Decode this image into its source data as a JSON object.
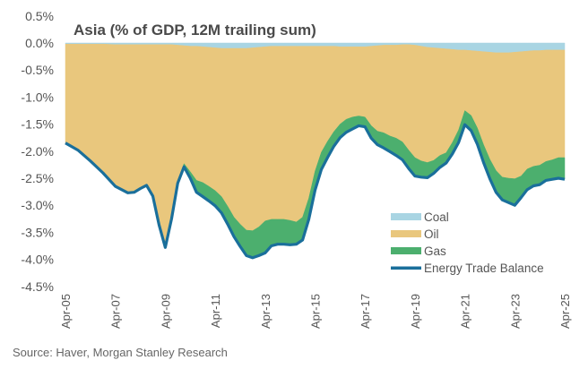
{
  "chart_data": {
    "type": "area",
    "title": "Asia (% of GDP, 12M trailing sum)",
    "xlabel": "",
    "ylabel": "",
    "ylim": [
      -4.5,
      0.5
    ],
    "yticks": [
      "0.5%",
      "0.0%",
      "-0.5%",
      "-1.0%",
      "-1.5%",
      "-2.0%",
      "-2.5%",
      "-3.0%",
      "-3.5%",
      "-4.0%",
      "-4.5%"
    ],
    "ytick_values": [
      0.5,
      0.0,
      -0.5,
      -1.0,
      -1.5,
      -2.0,
      -2.5,
      -3.0,
      -3.5,
      -4.0,
      -4.5
    ],
    "xticks": [
      "Apr-05",
      "Apr-07",
      "Apr-09",
      "Apr-11",
      "Apr-13",
      "Apr-15",
      "Apr-17",
      "Apr-19",
      "Apr-21",
      "Apr-23",
      "Apr-25"
    ],
    "xtick_values": [
      2005.25,
      2007.25,
      2009.25,
      2011.25,
      2013.25,
      2015.25,
      2017.25,
      2019.25,
      2021.25,
      2023.25,
      2025.25
    ],
    "xlim": [
      2005.25,
      2025.25
    ],
    "grid": false,
    "legend_position": "bottom-right",
    "x": [
      2005.25,
      2005.75,
      2006.25,
      2006.75,
      2007.25,
      2007.75,
      2008.0,
      2008.25,
      2008.5,
      2008.75,
      2009.0,
      2009.25,
      2009.5,
      2009.75,
      2010.0,
      2010.25,
      2010.5,
      2010.75,
      2011.0,
      2011.25,
      2011.5,
      2011.75,
      2012.0,
      2012.25,
      2012.5,
      2012.75,
      2013.0,
      2013.25,
      2013.5,
      2013.75,
      2014.0,
      2014.25,
      2014.5,
      2014.75,
      2015.0,
      2015.25,
      2015.5,
      2015.75,
      2016.0,
      2016.25,
      2016.5,
      2016.75,
      2017.0,
      2017.25,
      2017.5,
      2017.75,
      2018.0,
      2018.25,
      2018.5,
      2018.75,
      2019.0,
      2019.25,
      2019.5,
      2019.75,
      2020.0,
      2020.25,
      2020.5,
      2020.75,
      2021.0,
      2021.25,
      2021.5,
      2021.75,
      2022.0,
      2022.25,
      2022.5,
      2022.75,
      2023.0,
      2023.25,
      2023.5,
      2023.75,
      2024.0,
      2024.25,
      2024.5,
      2024.75,
      2025.0,
      2025.25
    ],
    "series": [
      {
        "name": "Coal",
        "kind": "area",
        "color": "#a9d5e3",
        "values": [
          -0.02,
          -0.02,
          -0.02,
          -0.02,
          -0.03,
          -0.03,
          -0.03,
          -0.03,
          -0.03,
          -0.03,
          -0.03,
          -0.03,
          -0.03,
          -0.04,
          -0.05,
          -0.06,
          -0.06,
          -0.07,
          -0.08,
          -0.09,
          -0.1,
          -0.1,
          -0.1,
          -0.1,
          -0.1,
          -0.09,
          -0.08,
          -0.07,
          -0.06,
          -0.06,
          -0.06,
          -0.06,
          -0.06,
          -0.06,
          -0.06,
          -0.06,
          -0.06,
          -0.06,
          -0.06,
          -0.07,
          -0.07,
          -0.07,
          -0.07,
          -0.07,
          -0.06,
          -0.05,
          -0.04,
          -0.04,
          -0.04,
          -0.03,
          -0.03,
          -0.04,
          -0.06,
          -0.08,
          -0.09,
          -0.1,
          -0.11,
          -0.12,
          -0.13,
          -0.13,
          -0.14,
          -0.15,
          -0.16,
          -0.17,
          -0.18,
          -0.18,
          -0.18,
          -0.17,
          -0.16,
          -0.15,
          -0.14,
          -0.14,
          -0.13,
          -0.13,
          -0.13,
          -0.13
        ]
      },
      {
        "name": "Oil",
        "kind": "area",
        "color": "#e9c77d",
        "values": [
          -1.83,
          -1.96,
          -2.16,
          -2.38,
          -2.62,
          -2.74,
          -2.73,
          -2.66,
          -2.59,
          -2.79,
          -3.32,
          -3.74,
          -3.2,
          -2.5,
          -2.18,
          -2.32,
          -2.48,
          -2.51,
          -2.57,
          -2.64,
          -2.74,
          -2.92,
          -3.12,
          -3.25,
          -3.36,
          -3.38,
          -3.32,
          -3.22,
          -3.2,
          -3.2,
          -3.2,
          -3.22,
          -3.25,
          -3.16,
          -2.81,
          -2.31,
          -1.96,
          -1.76,
          -1.58,
          -1.43,
          -1.34,
          -1.3,
          -1.28,
          -1.3,
          -1.47,
          -1.58,
          -1.62,
          -1.68,
          -1.72,
          -1.8,
          -1.95,
          -2.08,
          -2.12,
          -2.13,
          -2.08,
          -1.98,
          -1.92,
          -1.72,
          -1.48,
          -1.12,
          -1.2,
          -1.42,
          -1.72,
          -1.98,
          -2.18,
          -2.3,
          -2.32,
          -2.34,
          -2.3,
          -2.18,
          -2.14,
          -2.12,
          -2.06,
          -2.03,
          -1.99,
          -1.99
        ]
      },
      {
        "name": "Gas",
        "kind": "area",
        "color": "#4caf6e",
        "values": [
          0.0,
          0.0,
          0.0,
          0.0,
          0.0,
          0.0,
          0.0,
          0.0,
          -0.01,
          -0.01,
          -0.01,
          -0.01,
          -0.02,
          -0.05,
          -0.06,
          -0.12,
          -0.22,
          -0.26,
          -0.27,
          -0.28,
          -0.3,
          -0.33,
          -0.36,
          -0.41,
          -0.47,
          -0.5,
          -0.53,
          -0.59,
          -0.49,
          -0.46,
          -0.46,
          -0.45,
          -0.41,
          -0.42,
          -0.39,
          -0.35,
          -0.32,
          -0.3,
          -0.27,
          -0.25,
          -0.24,
          -0.22,
          -0.18,
          -0.18,
          -0.23,
          -0.25,
          -0.28,
          -0.29,
          -0.32,
          -0.33,
          -0.34,
          -0.34,
          -0.3,
          -0.28,
          -0.24,
          -0.22,
          -0.19,
          -0.21,
          -0.23,
          -0.26,
          -0.28,
          -0.3,
          -0.33,
          -0.36,
          -0.4,
          -0.42,
          -0.45,
          -0.49,
          -0.4,
          -0.38,
          -0.36,
          -0.36,
          -0.35,
          -0.36,
          -0.38,
          -0.4
        ]
      },
      {
        "name": "Energy Trade Balance",
        "kind": "line",
        "color": "#1a6f9b",
        "values": [
          -1.85,
          -1.98,
          -2.18,
          -2.4,
          -2.65,
          -2.77,
          -2.76,
          -2.69,
          -2.63,
          -2.83,
          -3.36,
          -3.78,
          -3.25,
          -2.59,
          -2.29,
          -2.5,
          -2.76,
          -2.84,
          -2.92,
          -3.01,
          -3.14,
          -3.35,
          -3.58,
          -3.76,
          -3.93,
          -3.97,
          -3.93,
          -3.88,
          -3.75,
          -3.72,
          -3.72,
          -3.73,
          -3.72,
          -3.64,
          -3.26,
          -2.72,
          -2.34,
          -2.12,
          -1.91,
          -1.75,
          -1.65,
          -1.59,
          -1.53,
          -1.55,
          -1.76,
          -1.88,
          -1.94,
          -2.01,
          -2.08,
          -2.16,
          -2.32,
          -2.46,
          -2.48,
          -2.49,
          -2.41,
          -2.3,
          -2.22,
          -2.05,
          -1.84,
          -1.51,
          -1.62,
          -1.87,
          -2.21,
          -2.51,
          -2.76,
          -2.9,
          -2.95,
          -3.0,
          -2.86,
          -2.71,
          -2.64,
          -2.62,
          -2.54,
          -2.52,
          -2.5,
          -2.52
        ]
      }
    ]
  },
  "legend": {
    "items": [
      {
        "label": "Coal",
        "color": "#a9d5e3",
        "kind": "area"
      },
      {
        "label": "Oil",
        "color": "#e9c77d",
        "kind": "area"
      },
      {
        "label": "Gas",
        "color": "#4caf6e",
        "kind": "area"
      },
      {
        "label": "Energy Trade Balance",
        "color": "#1a6f9b",
        "kind": "line"
      }
    ]
  },
  "source": "Source: Haver, Morgan Stanley Research"
}
